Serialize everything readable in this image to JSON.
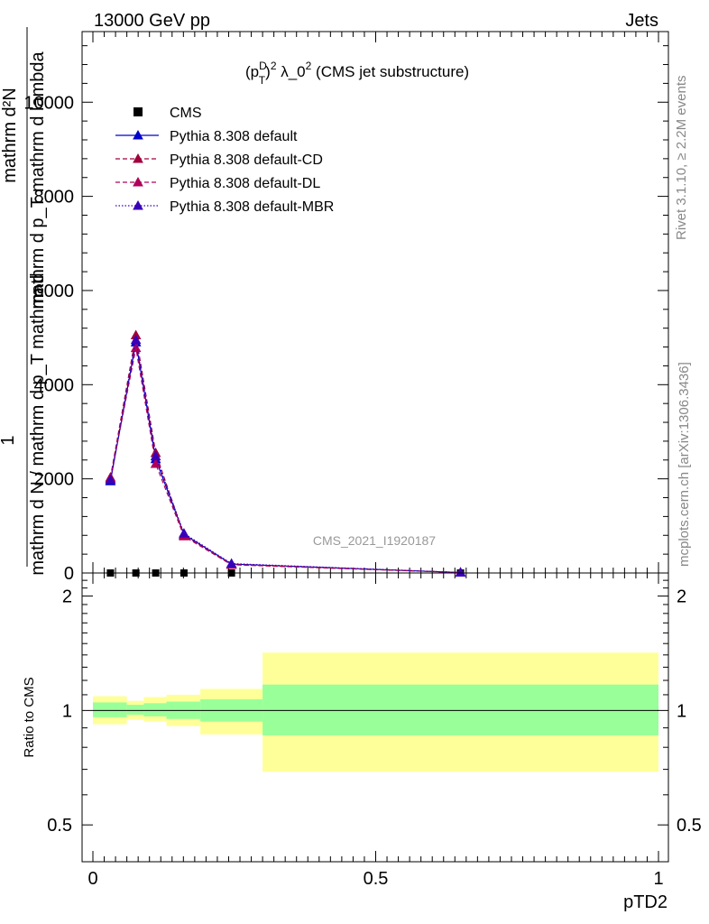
{
  "header": {
    "left": "13000 GeV pp",
    "right": "Jets"
  },
  "side_labels": {
    "rivet": "Rivet 3.1.10, ≥ 2.2M events",
    "mcplots": "mcplots.cern.ch [arXiv:1306.3436]"
  },
  "watermark": "CMS_2021_I1920187",
  "colors": {
    "data": "#000000",
    "default": "#0000cc",
    "default_cd": "#a0003c",
    "default_dl": "#b0005a",
    "default_mbr": "#3a00b8",
    "band_inner": "#99ff99",
    "band_outer": "#ffff99"
  },
  "chart_data": [
    {
      "type": "line",
      "title_parts": {
        "p": "(p",
        "sup1": "D",
        "sub1": "T",
        "close": ")",
        "sup2": "2",
        "mid": " λ_0",
        "sup3": "2",
        "rest": " (CMS jet substructure)"
      },
      "ylabel": {
        "top": "1",
        "bottom": "mathrm d N / mathrm d p_T mathrm d",
        "right_top": "mathrm d²N",
        "right_bottom": "mathrm d p_T mathrm d lambda"
      },
      "xlim": [
        0,
        1
      ],
      "ylim": [
        0,
        11500
      ],
      "yticks": [
        0,
        2000,
        4000,
        6000,
        8000,
        10000
      ],
      "ytick_labels": [
        "0",
        "2000",
        "4000",
        "6000",
        "8000",
        "10000"
      ],
      "legend_placement": "top-left",
      "series": [
        {
          "name": "CMS",
          "marker": "square",
          "x": [
            0.031,
            0.076,
            0.111,
            0.161,
            0.245,
            0.65
          ],
          "y": [
            0,
            0,
            0,
            0,
            0,
            0
          ]
        },
        {
          "name": "Pythia 8.308 default",
          "marker": "triangle",
          "line": "solid",
          "x": [
            0.031,
            0.076,
            0.111,
            0.161,
            0.245,
            0.65
          ],
          "y": [
            1950,
            4900,
            2420,
            820,
            190,
            10
          ]
        },
        {
          "name": "Pythia 8.308 default-CD",
          "marker": "triangle",
          "line": "dash",
          "x": [
            0.031,
            0.076,
            0.111,
            0.161,
            0.245,
            0.65
          ],
          "y": [
            2030,
            5050,
            2550,
            800,
            180,
            10
          ]
        },
        {
          "name": "Pythia 8.308 default-DL",
          "marker": "triangle",
          "line": "dash",
          "x": [
            0.031,
            0.076,
            0.111,
            0.161,
            0.245,
            0.65
          ],
          "y": [
            2000,
            4780,
            2320,
            780,
            175,
            10
          ]
        },
        {
          "name": "Pythia 8.308 default-MBR",
          "marker": "triangle",
          "line": "dot",
          "x": [
            0.031,
            0.076,
            0.111,
            0.161,
            0.245,
            0.65
          ],
          "y": [
            1980,
            4950,
            2480,
            840,
            200,
            10
          ]
        }
      ]
    },
    {
      "type": "area",
      "ylabel": "Ratio to CMS",
      "xlabel": "pTD2",
      "xlim": [
        0,
        1
      ],
      "ylim": [
        0.4,
        2.3
      ],
      "log_y": true,
      "xticks": [
        0,
        0.5,
        1
      ],
      "xtick_labels": [
        "0",
        "0.5",
        "1"
      ],
      "yticks": [
        0.5,
        1,
        2
      ],
      "ytick_labels": [
        "0.5",
        "1",
        "2"
      ],
      "reference_line": 1,
      "bins": [
        {
          "x": [
            0.0,
            0.06
          ],
          "inner": [
            0.96,
            1.05
          ],
          "outer": [
            0.92,
            1.09
          ]
        },
        {
          "x": [
            0.06,
            0.09
          ],
          "inner": [
            0.975,
            1.035
          ],
          "outer": [
            0.945,
            1.06
          ]
        },
        {
          "x": [
            0.09,
            0.13
          ],
          "inner": [
            0.965,
            1.045
          ],
          "outer": [
            0.935,
            1.085
          ]
        },
        {
          "x": [
            0.13,
            0.19
          ],
          "inner": [
            0.95,
            1.055
          ],
          "outer": [
            0.91,
            1.1
          ]
        },
        {
          "x": [
            0.19,
            0.3
          ],
          "inner": [
            0.935,
            1.07
          ],
          "outer": [
            0.865,
            1.14
          ]
        },
        {
          "x": [
            0.3,
            1.0
          ],
          "inner": [
            0.86,
            1.17
          ],
          "outer": [
            0.69,
            1.42
          ]
        }
      ]
    }
  ]
}
